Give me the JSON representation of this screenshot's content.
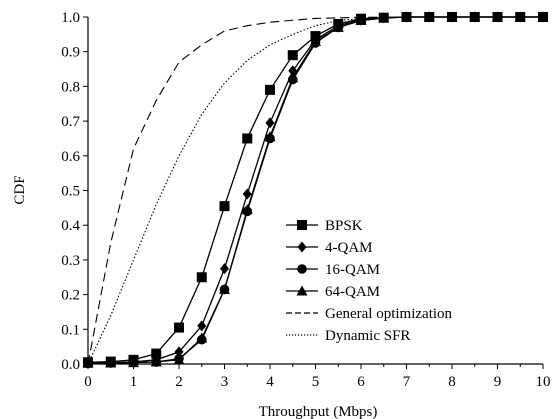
{
  "chart_data": {
    "type": "line",
    "title": "",
    "xlabel": "Throughput (Mbps)",
    "ylabel": "CDF",
    "xlim": [
      0,
      10
    ],
    "ylim": [
      0,
      1.0
    ],
    "x_ticks": [
      "0",
      "1",
      "2",
      "3",
      "4",
      "5",
      "6",
      "7",
      "8",
      "9",
      "10"
    ],
    "y_ticks": [
      "0.0",
      "0.1",
      "0.2",
      "0.3",
      "0.4",
      "0.5",
      "0.6",
      "0.7",
      "0.8",
      "0.9",
      "1.0"
    ],
    "grid": false,
    "legend_position": "center-right",
    "series": [
      {
        "name": "BPSK",
        "style": "solid",
        "marker": "square",
        "x": [
          0,
          0.5,
          1,
          1.5,
          2,
          2.5,
          3,
          3.5,
          4,
          4.5,
          5,
          5.5,
          6,
          6.5,
          7,
          7.5,
          8,
          8.5,
          9,
          9.5,
          10
        ],
        "y": [
          0.005,
          0.007,
          0.012,
          0.03,
          0.105,
          0.25,
          0.455,
          0.65,
          0.79,
          0.89,
          0.945,
          0.98,
          0.995,
          0.998,
          1.0,
          1.0,
          1.0,
          1.0,
          1.0,
          1.0,
          1.0
        ]
      },
      {
        "name": "4-QAM",
        "style": "solid",
        "marker": "diamond",
        "x": [
          0,
          0.5,
          1,
          1.5,
          2,
          2.5,
          3,
          3.5,
          4,
          4.5,
          5,
          5.5,
          6,
          6.5,
          7,
          7.5,
          8,
          8.5,
          9,
          9.5,
          10
        ],
        "y": [
          0.003,
          0.004,
          0.006,
          0.012,
          0.035,
          0.11,
          0.275,
          0.49,
          0.695,
          0.845,
          0.935,
          0.975,
          0.993,
          0.998,
          1.0,
          1.0,
          1.0,
          1.0,
          1.0,
          1.0,
          1.0
        ]
      },
      {
        "name": "16-QAM",
        "style": "solid",
        "marker": "circle",
        "x": [
          0,
          0.5,
          1,
          1.5,
          2,
          2.5,
          3,
          3.5,
          4,
          4.5,
          5,
          5.5,
          6,
          6.5,
          7,
          7.5,
          8,
          8.5,
          9,
          9.5,
          10
        ],
        "y": [
          0.002,
          0.003,
          0.004,
          0.006,
          0.015,
          0.07,
          0.215,
          0.44,
          0.65,
          0.82,
          0.925,
          0.97,
          0.99,
          0.997,
          1.0,
          1.0,
          1.0,
          1.0,
          1.0,
          1.0,
          1.0
        ]
      },
      {
        "name": "64-QAM",
        "style": "solid",
        "marker": "triangle",
        "x": [
          0,
          0.5,
          1,
          1.5,
          2,
          2.5,
          3,
          3.5,
          4,
          4.5,
          5,
          5.5,
          6,
          6.5,
          7,
          7.5,
          8,
          8.5,
          9,
          9.5,
          10
        ],
        "y": [
          0.002,
          0.003,
          0.004,
          0.006,
          0.012,
          0.075,
          0.215,
          0.445,
          0.655,
          0.825,
          0.93,
          0.97,
          0.99,
          0.997,
          1.0,
          1.0,
          1.0,
          1.0,
          1.0,
          1.0,
          1.0
        ]
      },
      {
        "name": "General optimization",
        "style": "dashed",
        "marker": "none",
        "x": [
          0,
          0.5,
          1,
          1.5,
          2,
          2.5,
          3,
          3.5,
          4,
          5,
          6,
          7,
          8,
          9,
          10
        ],
        "y": [
          0,
          0.35,
          0.62,
          0.76,
          0.87,
          0.92,
          0.96,
          0.975,
          0.985,
          0.996,
          0.999,
          1.0,
          1.0,
          1.0,
          1.0
        ]
      },
      {
        "name": "Dynamic SFR",
        "style": "dotted",
        "marker": "none",
        "x": [
          0,
          0.5,
          1,
          1.5,
          2,
          2.5,
          3,
          3.5,
          4,
          4.5,
          5,
          5.5,
          6,
          7,
          8,
          9,
          10
        ],
        "y": [
          0,
          0.14,
          0.3,
          0.46,
          0.6,
          0.72,
          0.81,
          0.875,
          0.92,
          0.95,
          0.975,
          0.99,
          0.996,
          1.0,
          1.0,
          1.0,
          1.0
        ]
      }
    ]
  }
}
